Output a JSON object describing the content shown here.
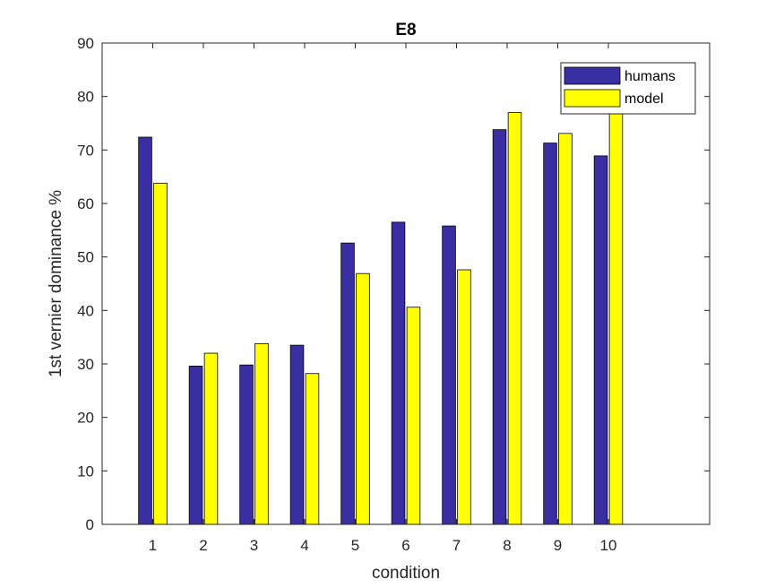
{
  "chart_data": {
    "type": "bar",
    "title": "E8",
    "xlabel": "condition",
    "ylabel": "1st vernier dominance %",
    "categories": [
      "1",
      "2",
      "3",
      "4",
      "5",
      "6",
      "7",
      "8",
      "9",
      "10"
    ],
    "xlim": [
      0,
      12
    ],
    "ylim": [
      0,
      90
    ],
    "yticks": [
      0,
      10,
      20,
      30,
      40,
      50,
      60,
      70,
      80,
      90
    ],
    "grid": false,
    "legend_location": "top-right",
    "series": [
      {
        "name": "humans",
        "color": "#3a2ea3",
        "values": [
          72.4,
          29.6,
          29.8,
          33.5,
          52.6,
          56.5,
          55.8,
          73.8,
          71.3,
          68.9
        ]
      },
      {
        "name": "model",
        "color": "#ffff00",
        "values": [
          63.8,
          32.0,
          33.8,
          28.2,
          46.9,
          40.6,
          47.6,
          77.0,
          73.1,
          79.3
        ]
      }
    ]
  }
}
